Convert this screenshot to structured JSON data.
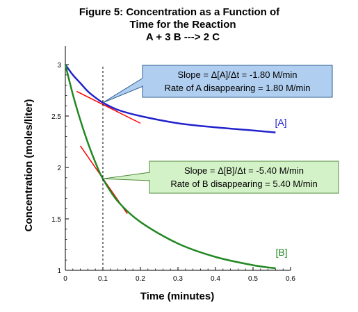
{
  "chart_data": {
    "type": "line",
    "title_lines": [
      "Figure 5:  Concentration as a Function of",
      "Time for the Reaction",
      "A + 3 B ---> 2 C"
    ],
    "xlabel": "Time (minutes)",
    "ylabel": "Concentration (moles/liter)",
    "xlim": [
      0,
      0.6
    ],
    "ylim": [
      1,
      3
    ],
    "x_ticks": [
      "0",
      "0.1",
      "0.2",
      "0.3",
      "0.4",
      "0.5",
      "0.6"
    ],
    "y_ticks": [
      "1",
      "1.5",
      "2",
      "2.5",
      "3"
    ],
    "grid": false,
    "series": [
      {
        "name": "[A]",
        "color": "#2222cc",
        "x": [
          0,
          0.02,
          0.04,
          0.06,
          0.08,
          0.1,
          0.14,
          0.2,
          0.3,
          0.4,
          0.5,
          0.56
        ],
        "y": [
          3.0,
          2.9,
          2.82,
          2.74,
          2.68,
          2.63,
          2.56,
          2.5,
          2.43,
          2.39,
          2.36,
          2.34
        ]
      },
      {
        "name": "[B]",
        "color": "#228822",
        "x": [
          0,
          0.02,
          0.04,
          0.06,
          0.08,
          0.1,
          0.14,
          0.2,
          0.3,
          0.4,
          0.5,
          0.56
        ],
        "y": [
          3.0,
          2.71,
          2.46,
          2.24,
          2.05,
          1.89,
          1.67,
          1.47,
          1.26,
          1.13,
          1.05,
          1.02
        ]
      }
    ],
    "tangents": [
      {
        "x": [
          0.03,
          0.2
        ],
        "y": [
          2.74,
          2.43
        ],
        "color": "#ff0000"
      },
      {
        "x": [
          0.04,
          0.165
        ],
        "y": [
          2.21,
          1.55
        ],
        "color": "#ff0000"
      }
    ],
    "reference_line": {
      "x": 0.1,
      "style": "dashed",
      "color": "#000000"
    },
    "callouts": [
      {
        "lines": [
          "Slope = Δ[A]/Δt = -1.80 M/min",
          "Rate of A disappearing = 1.80 M/min"
        ],
        "fill": "#b0cff0",
        "border": "#2c5d91",
        "point": {
          "x": 0.1,
          "y": 2.63
        }
      },
      {
        "lines": [
          "Slope = Δ[B]/Δt = -5.40 M/min",
          "Rate of B disappearing = 5.40 M/min"
        ],
        "fill": "#d4f2c8",
        "border": "#4f8a3a",
        "point": {
          "x": 0.1,
          "y": 1.89
        }
      }
    ]
  }
}
